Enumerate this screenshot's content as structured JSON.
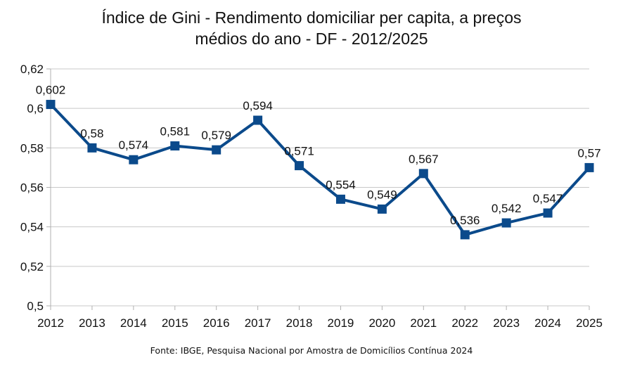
{
  "chart_data": {
    "type": "line",
    "title_lines": [
      "Índice de Gini - Rendimento domiciliar per capita, a preços",
      "médios do ano - DF - 2012/2025"
    ],
    "categories": [
      "2012",
      "2013",
      "2014",
      "2015",
      "2016",
      "2017",
      "2018",
      "2019",
      "2020",
      "2021",
      "2022",
      "2023",
      "2024",
      "2025"
    ],
    "values": [
      0.602,
      0.58,
      0.574,
      0.581,
      0.579,
      0.594,
      0.571,
      0.554,
      0.549,
      0.567,
      0.536,
      0.542,
      0.547,
      0.57
    ],
    "data_labels": [
      "0,602",
      "0,58",
      "0,574",
      "0,581",
      "0,579",
      "0,594",
      "0,571",
      "0,554",
      "0,549",
      "0,567",
      "0,536",
      "0,542",
      "0,547",
      "0,57"
    ],
    "ylim": [
      0.5,
      0.62
    ],
    "yticks": [
      0.5,
      0.52,
      0.54,
      0.56,
      0.58,
      0.6,
      0.62
    ],
    "ytick_labels": [
      "0,5",
      "0,52",
      "0,54",
      "0,56",
      "0,58",
      "0,6",
      "0,62"
    ],
    "grid": true,
    "legend": "none",
    "line_color": "#0b4a8b",
    "grid_color": "#c8c8c8"
  },
  "source": "Fonte: IBGE, Pesquisa Nacional por Amostra de Domicílios Contínua 2024"
}
